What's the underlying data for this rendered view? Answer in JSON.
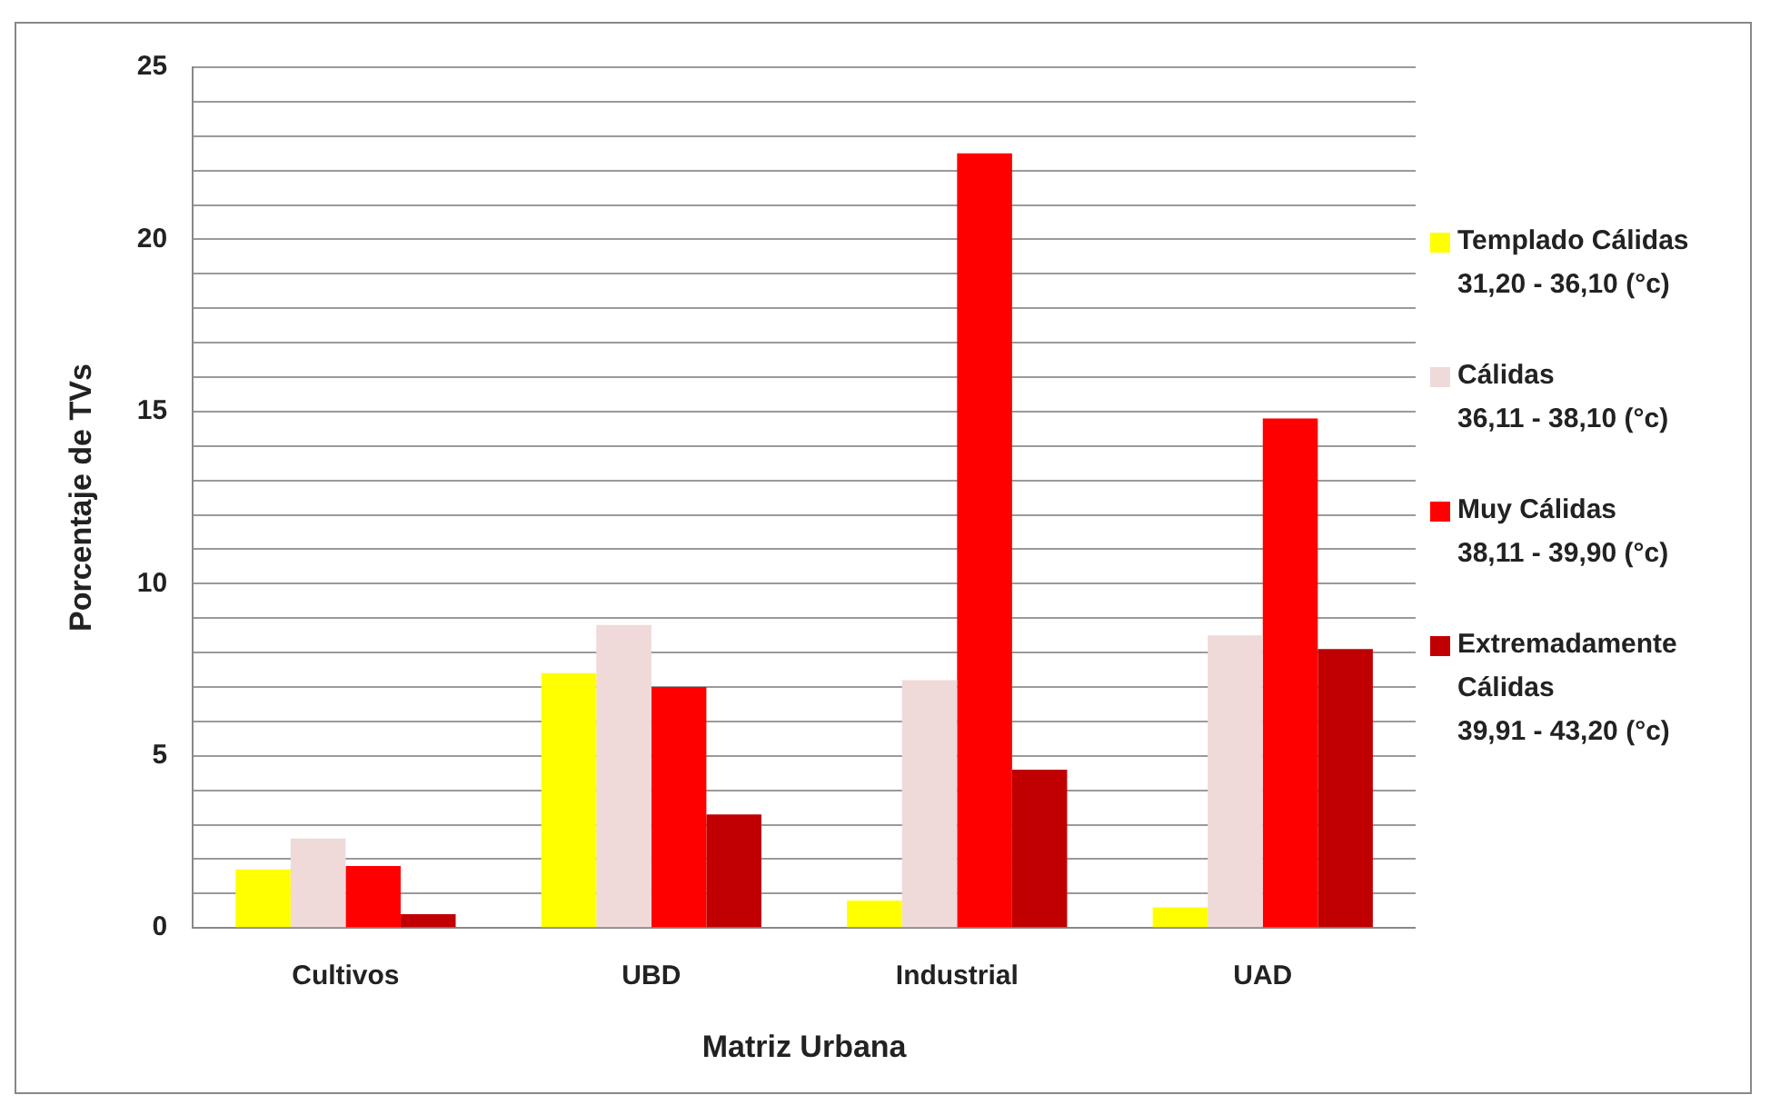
{
  "chart_data": {
    "type": "bar",
    "xlabel": "Matriz Urbana",
    "ylabel": "Porcentaje de TVs",
    "categories": [
      "Cultivos",
      "UBD",
      "Industrial",
      "UAD"
    ],
    "series": [
      {
        "name": "Templado Cálidas\n31,20 - 36,10 (°c)",
        "color": "#ffff00",
        "values": [
          1.7,
          7.4,
          0.8,
          0.6
        ]
      },
      {
        "name": "Cálidas\n36,11 - 38,10 (°c)",
        "color": "#efd9d9",
        "values": [
          2.6,
          8.8,
          7.2,
          8.5
        ]
      },
      {
        "name": "Muy Cálidas\n38,11 - 39,90 (°c)",
        "color": "#ff0000",
        "values": [
          1.8,
          7.0,
          22.5,
          14.8
        ]
      },
      {
        "name": "Extremadamente\nCálidas\n39,91 - 43,20 (°c)",
        "color": "#c00000",
        "values": [
          0.4,
          3.3,
          4.6,
          8.1
        ]
      }
    ],
    "ylim": [
      0,
      25
    ],
    "yticks": [
      0,
      {
        "value": 1,
        "label": null
      },
      {
        "value": 2,
        "label": null
      },
      {
        "value": 3,
        "label": null
      },
      {
        "value": 4,
        "label": null
      },
      5,
      {
        "value": 6,
        "label": null
      },
      {
        "value": 7,
        "label": null
      },
      {
        "value": 8,
        "label": null
      },
      {
        "value": 9,
        "label": null
      },
      10,
      {
        "value": 11,
        "label": null
      },
      {
        "value": 12,
        "label": null
      },
      {
        "value": 13,
        "label": null
      },
      {
        "value": 14,
        "label": null
      },
      15,
      {
        "value": 16,
        "label": null
      },
      {
        "value": 17,
        "label": null
      },
      {
        "value": 18,
        "label": null
      },
      {
        "value": 19,
        "label": null
      },
      20,
      {
        "value": 21,
        "label": null
      },
      {
        "value": 22,
        "label": null
      },
      {
        "value": 23,
        "label": null
      },
      {
        "value": 24,
        "label": null
      },
      25
    ],
    "grid": "y",
    "legend": "right"
  }
}
